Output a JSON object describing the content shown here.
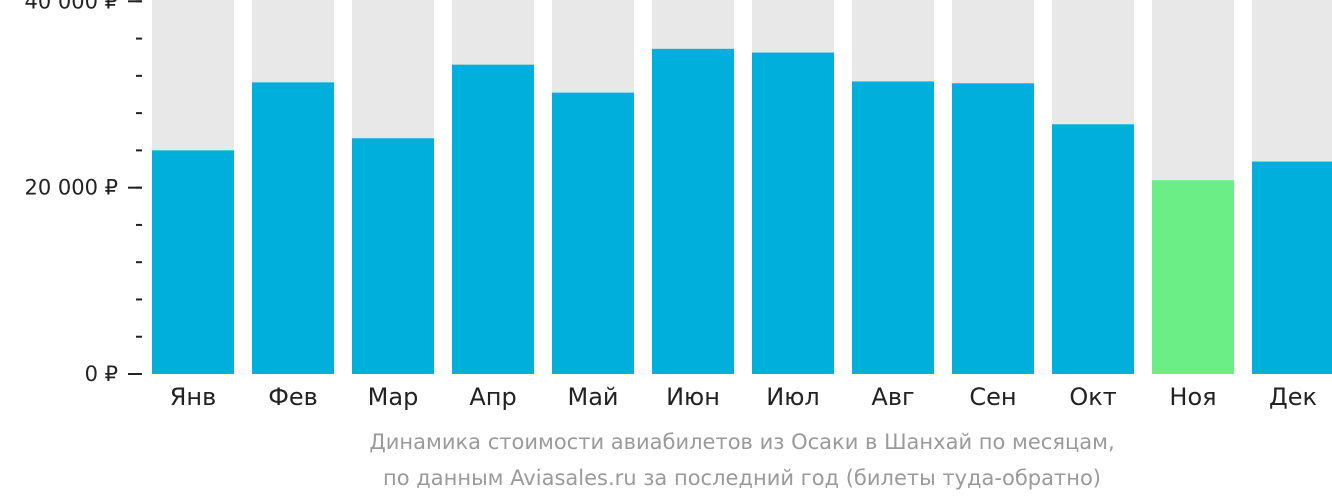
{
  "chart_data": {
    "type": "bar",
    "categories": [
      "Янв",
      "Фев",
      "Мар",
      "Апр",
      "Май",
      "Июн",
      "Июл",
      "Авг",
      "Сен",
      "Окт",
      "Ноя",
      "Дек"
    ],
    "values": [
      24000,
      31300,
      25300,
      33200,
      30200,
      34900,
      34500,
      31400,
      31200,
      26800,
      20800,
      22800
    ],
    "ylim": [
      0,
      41000
    ],
    "yticks": [
      {
        "value": 0,
        "label": "0 ₽"
      },
      {
        "value": 20000,
        "label": "20 000 ₽"
      },
      {
        "value": 40000,
        "label": "40 000 ₽"
      }
    ],
    "minor_tick_step": 4000,
    "highlight_index": 10,
    "colors": {
      "bar": "#00afdc",
      "bar_highlight": "#6cee86",
      "bar_background": "#e8e8e8",
      "axis": "#222222"
    }
  },
  "caption": {
    "line1": "Динамика стоимости авиабилетов из Осаки в Шанхай по месяцам,",
    "line2": "по данным Aviasales.ru за последний год (билеты туда-обратно)"
  }
}
